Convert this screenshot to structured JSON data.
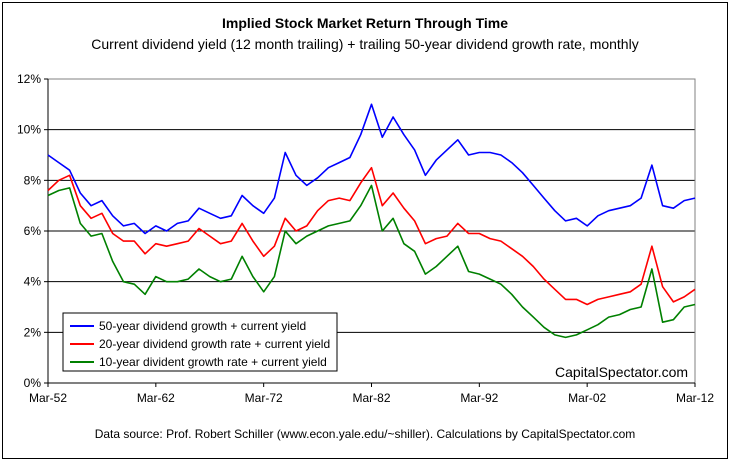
{
  "chart_data": {
    "type": "line",
    "title": "Implied Stock Market Return Through Time",
    "subtitle": "Current dividend yield (12 month trailing) + trailing 50-year dividend growth rate, monthly",
    "source": "Data source: Prof. Robert Schiller (www.econ.yale.edu/~shiller). Calculations by CapitalSpectator.com",
    "watermark": "CapitalSpectator.com",
    "ylim": [
      0,
      12
    ],
    "xlim": [
      1952,
      2012
    ],
    "y_ticks": [
      "0%",
      "2%",
      "4%",
      "6%",
      "8%",
      "10%",
      "12%"
    ],
    "y_tick_values": [
      0,
      2,
      4,
      6,
      8,
      10,
      12
    ],
    "x_ticks": [
      "Mar-52",
      "Mar-62",
      "Mar-72",
      "Mar-82",
      "Mar-92",
      "Mar-02",
      "Mar-12"
    ],
    "x_tick_values": [
      1952,
      1962,
      1972,
      1982,
      1992,
      2002,
      2012
    ],
    "grid": "horizontal",
    "legend_position": "bottom-left",
    "series": [
      {
        "name": "50-year dividend growth + current yield",
        "color": "#0000ff",
        "x": [
          1952,
          1953,
          1954,
          1955,
          1956,
          1957,
          1958,
          1959,
          1960,
          1961,
          1962,
          1963,
          1964,
          1965,
          1966,
          1967,
          1968,
          1969,
          1970,
          1971,
          1972,
          1973,
          1974,
          1975,
          1976,
          1977,
          1978,
          1979,
          1980,
          1981,
          1982,
          1983,
          1984,
          1985,
          1986,
          1987,
          1988,
          1989,
          1990,
          1991,
          1992,
          1993,
          1994,
          1995,
          1996,
          1997,
          1998,
          1999,
          2000,
          2001,
          2002,
          2003,
          2004,
          2005,
          2006,
          2007,
          2008,
          2009,
          2010,
          2011,
          2012
        ],
        "y": [
          9.0,
          8.7,
          8.4,
          7.5,
          7.0,
          7.2,
          6.6,
          6.2,
          6.3,
          5.9,
          6.2,
          6.0,
          6.3,
          6.4,
          6.9,
          6.7,
          6.5,
          6.6,
          7.4,
          7.0,
          6.7,
          7.3,
          9.1,
          8.2,
          7.8,
          8.1,
          8.5,
          8.7,
          8.9,
          9.8,
          11.0,
          9.7,
          10.5,
          9.8,
          9.2,
          8.2,
          8.8,
          9.2,
          9.6,
          9.0,
          9.1,
          9.1,
          9.0,
          8.7,
          8.3,
          7.8,
          7.3,
          6.8,
          6.4,
          6.5,
          6.2,
          6.6,
          6.8,
          6.9,
          7.0,
          7.3,
          8.6,
          7.0,
          6.9,
          7.2,
          7.3
        ]
      },
      {
        "name": "20-year dividend growth rate + current yield",
        "color": "#ff0000",
        "x": [
          1952,
          1953,
          1954,
          1955,
          1956,
          1957,
          1958,
          1959,
          1960,
          1961,
          1962,
          1963,
          1964,
          1965,
          1966,
          1967,
          1968,
          1969,
          1970,
          1971,
          1972,
          1973,
          1974,
          1975,
          1976,
          1977,
          1978,
          1979,
          1980,
          1981,
          1982,
          1983,
          1984,
          1985,
          1986,
          1987,
          1988,
          1989,
          1990,
          1991,
          1992,
          1993,
          1994,
          1995,
          1996,
          1997,
          1998,
          1999,
          2000,
          2001,
          2002,
          2003,
          2004,
          2005,
          2006,
          2007,
          2008,
          2009,
          2010,
          2011,
          2012
        ],
        "y": [
          7.6,
          8.0,
          8.2,
          7.0,
          6.5,
          6.7,
          5.9,
          5.6,
          5.6,
          5.1,
          5.5,
          5.4,
          5.5,
          5.6,
          6.1,
          5.8,
          5.5,
          5.6,
          6.3,
          5.6,
          5.0,
          5.4,
          6.5,
          6.0,
          6.2,
          6.8,
          7.2,
          7.3,
          7.2,
          7.9,
          8.5,
          7.0,
          7.5,
          6.9,
          6.4,
          5.5,
          5.7,
          5.8,
          6.3,
          5.9,
          5.9,
          5.7,
          5.6,
          5.3,
          5.0,
          4.6,
          4.1,
          3.7,
          3.3,
          3.3,
          3.1,
          3.3,
          3.4,
          3.5,
          3.6,
          3.9,
          5.4,
          3.8,
          3.2,
          3.4,
          3.7
        ]
      },
      {
        "name": "10-year divident growth rate + current yield",
        "color": "#008000",
        "x": [
          1952,
          1953,
          1954,
          1955,
          1956,
          1957,
          1958,
          1959,
          1960,
          1961,
          1962,
          1963,
          1964,
          1965,
          1966,
          1967,
          1968,
          1969,
          1970,
          1971,
          1972,
          1973,
          1974,
          1975,
          1976,
          1977,
          1978,
          1979,
          1980,
          1981,
          1982,
          1983,
          1984,
          1985,
          1986,
          1987,
          1988,
          1989,
          1990,
          1991,
          1992,
          1993,
          1994,
          1995,
          1996,
          1997,
          1998,
          1999,
          2000,
          2001,
          2002,
          2003,
          2004,
          2005,
          2006,
          2007,
          2008,
          2009,
          2010,
          2011,
          2012
        ],
        "y": [
          7.4,
          7.6,
          7.7,
          6.3,
          5.8,
          5.9,
          4.8,
          4.0,
          3.9,
          3.5,
          4.2,
          4.0,
          4.0,
          4.1,
          4.5,
          4.2,
          4.0,
          4.1,
          5.0,
          4.2,
          3.6,
          4.2,
          6.0,
          5.5,
          5.8,
          6.0,
          6.2,
          6.3,
          6.4,
          7.0,
          7.8,
          6.0,
          6.5,
          5.5,
          5.2,
          4.3,
          4.6,
          5.0,
          5.4,
          4.4,
          4.3,
          4.1,
          3.9,
          3.5,
          3.0,
          2.6,
          2.2,
          1.9,
          1.8,
          1.9,
          2.1,
          2.3,
          2.6,
          2.7,
          2.9,
          3.0,
          4.5,
          2.4,
          2.5,
          3.0,
          3.1
        ]
      }
    ]
  }
}
